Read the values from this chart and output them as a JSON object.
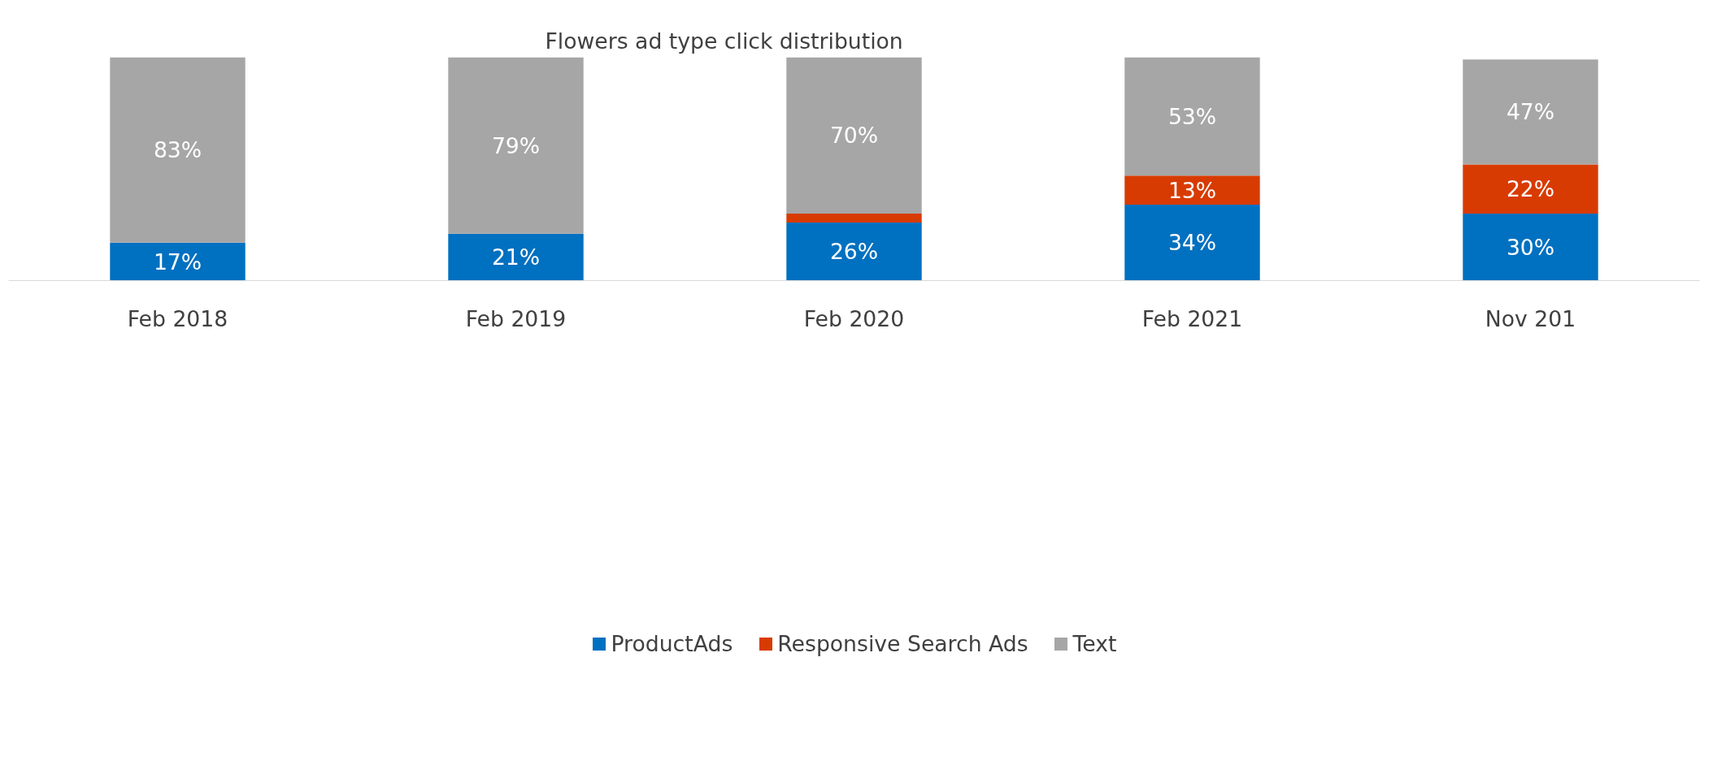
{
  "chart_data": {
    "type": "bar",
    "title": "Flowers ad type click distribution",
    "stacked": true,
    "categories": [
      "Feb 2018",
      "Feb 2019",
      "Feb 2020",
      "Feb 2021",
      "Nov 201"
    ],
    "series": [
      {
        "name": "ProductAds",
        "color": "#0070c0",
        "values": [
          17,
          21,
          26,
          34,
          30
        ],
        "value_labels": [
          "17%",
          "21%",
          "26%",
          "34%",
          "30%"
        ]
      },
      {
        "name": "Responsive Search Ads",
        "color": "#d83b01",
        "values": [
          null,
          null,
          4,
          13,
          22
        ],
        "value_labels": [
          null,
          null,
          null,
          "13%",
          "22%"
        ]
      },
      {
        "name": "Text",
        "color": "#a6a6a6",
        "values": [
          83,
          79,
          70,
          53,
          47
        ],
        "value_labels": [
          "83%",
          "79%",
          "70%",
          "53%",
          "47%"
        ]
      }
    ],
    "legend": "bottom",
    "grid": false
  }
}
